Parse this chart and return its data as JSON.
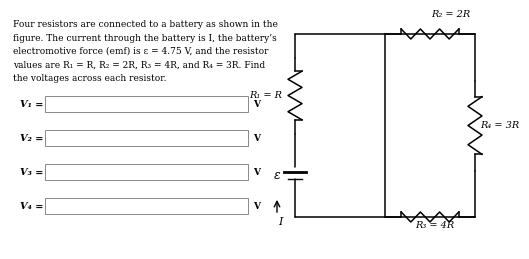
{
  "text_block_lines": [
    "Four resistors are connected to a battery as shown in the",
    "figure. The current through the battery is I, the battery’s",
    "electromotive force (emf) is ε = 4.75 V, and the resistor",
    "values are R₁ = R, R₂ = 2R, R₃ = 4R, and R₄ = 3R. Find",
    "the voltages across each resistor."
  ],
  "input_labels": [
    "V₁ =",
    "V₂ =",
    "V₃ =",
    "V₄ ="
  ],
  "unit_label": "V",
  "circuit_labels": {
    "R1": "R₁ = R",
    "R2": "R₂ = 2R",
    "R3": "R₃ = 4R",
    "R4": "R₄ = 3R",
    "emf": "ε",
    "current": "I"
  },
  "bg_color": "#ffffff",
  "line_color": "#000000",
  "box_color": "#ffffff",
  "box_edge_color": "#888888",
  "text_color": "#000000",
  "font_size_text": 6.5,
  "font_size_circuit": 7.0
}
